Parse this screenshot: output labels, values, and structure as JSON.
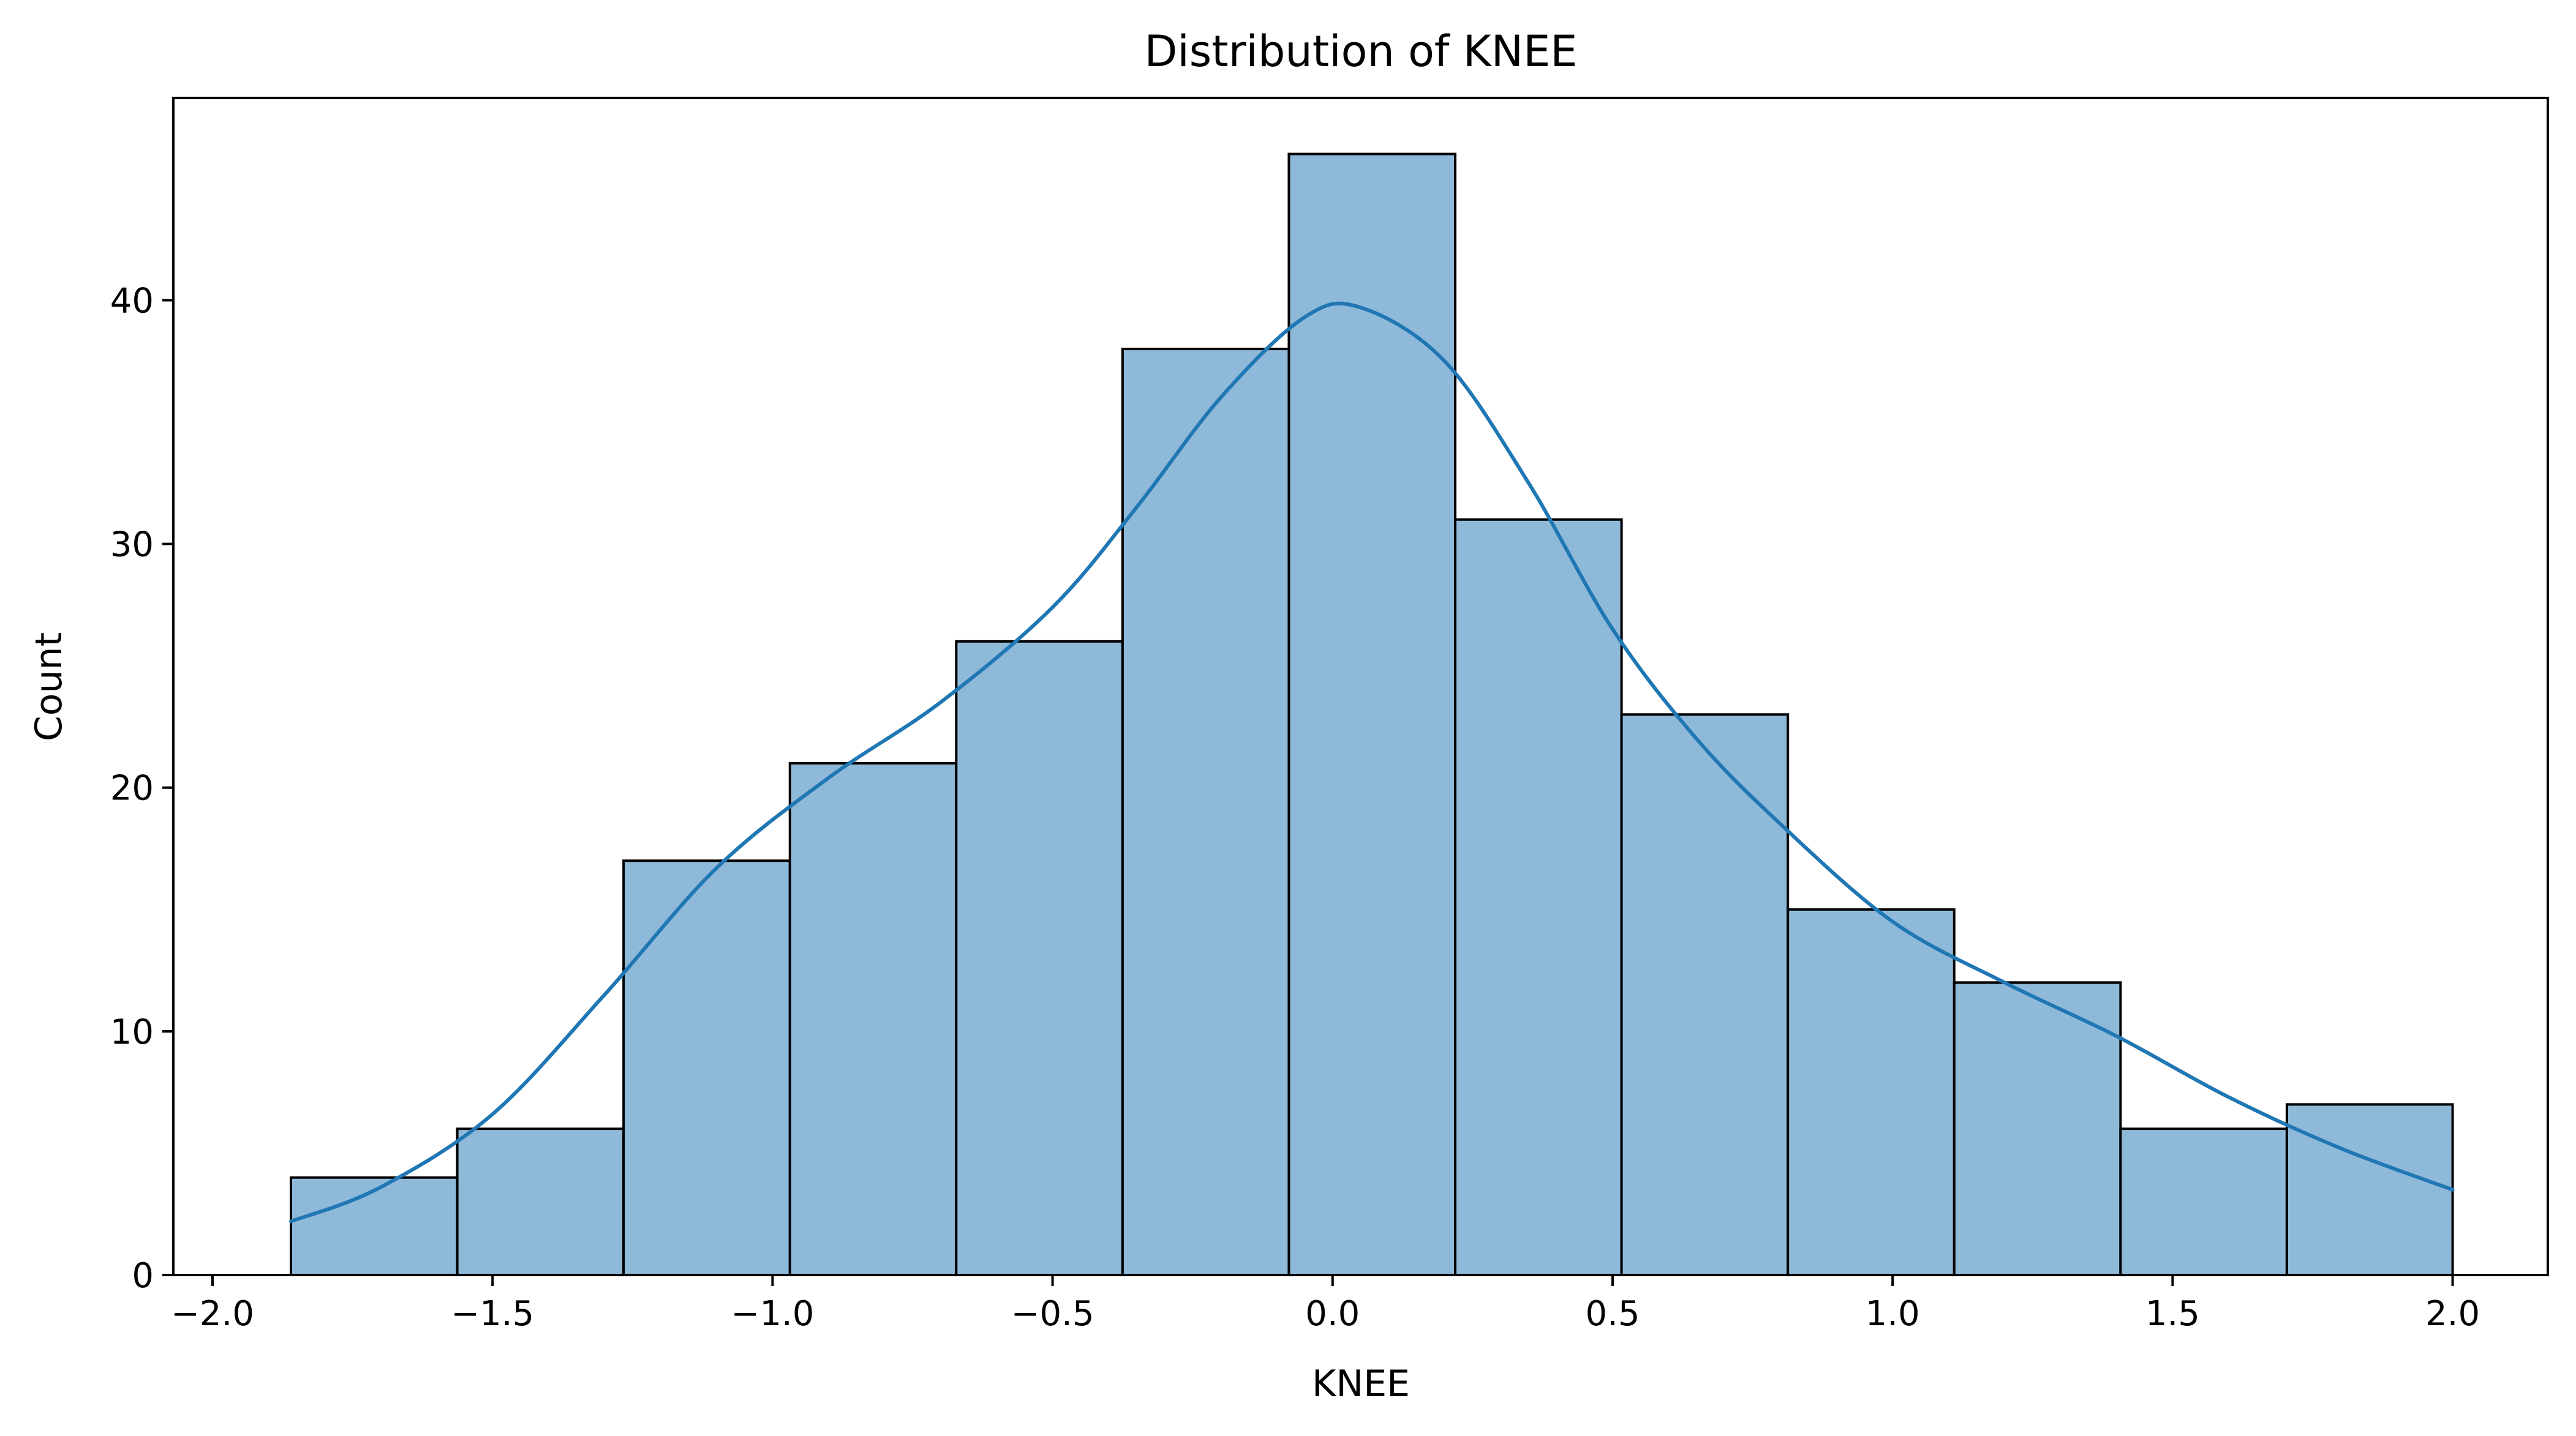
{
  "chart_data": {
    "type": "bar",
    "title": "Distribution of KNEE",
    "xlabel": "KNEE",
    "ylabel": "Count",
    "xlim": [
      -2.07,
      2.17
    ],
    "ylim": [
      0,
      48.3
    ],
    "xticks": [
      -2.0,
      -1.5,
      -1.0,
      -0.5,
      0.0,
      0.5,
      1.0,
      1.5,
      2.0
    ],
    "xtick_labels": [
      "−2.0",
      "−1.5",
      "−1.0",
      "−0.5",
      "0.0",
      "0.5",
      "1.0",
      "1.5",
      "2.0"
    ],
    "yticks": [
      0,
      10,
      20,
      30,
      40
    ],
    "ytick_labels": [
      "0",
      "10",
      "20",
      "30",
      "40"
    ],
    "bin_edges": [
      -1.86,
      -1.563,
      -1.266,
      -0.969,
      -0.672,
      -0.375,
      -0.078,
      0.219,
      0.516,
      0.813,
      1.11,
      1.407,
      1.704,
      2.0
    ],
    "values": [
      4,
      6,
      17,
      21,
      26,
      38,
      46,
      31,
      23,
      15,
      12,
      6,
      7
    ],
    "kde": {
      "x": [
        -1.86,
        -1.7,
        -1.5,
        -1.3,
        -1.1,
        -0.9,
        -0.7,
        -0.5,
        -0.35,
        -0.2,
        -0.05,
        0.05,
        0.2,
        0.35,
        0.5,
        0.65,
        0.8,
        1.0,
        1.2,
        1.4,
        1.6,
        1.8,
        2.0
      ],
      "y": [
        2.2,
        3.6,
        6.6,
        11.5,
        16.7,
        20.4,
        23.5,
        27.4,
        31.5,
        36.0,
        39.3,
        39.7,
        37.5,
        32.5,
        26.5,
        22.0,
        18.5,
        14.5,
        12.0,
        9.8,
        7.3,
        5.2,
        3.5
      ]
    },
    "grid": false,
    "legend": "none",
    "colors": {
      "bar_fill": "#8fb9d9",
      "bar_edge": "#000000",
      "kde_line": "#1f77b4",
      "axis": "#000000"
    }
  }
}
